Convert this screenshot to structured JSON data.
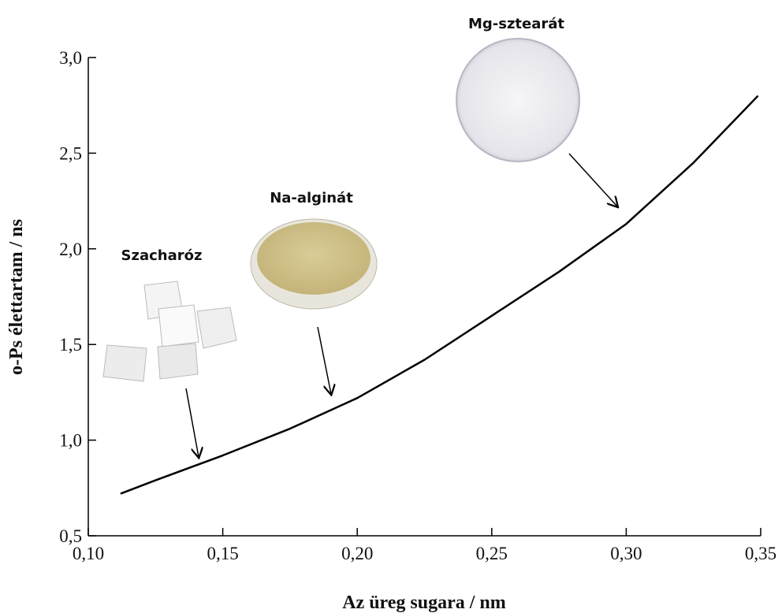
{
  "chart_data": {
    "type": "line",
    "xlabel": "Az üreg sugara / nm",
    "ylabel": "o-Ps élettartam / ns",
    "x": [
      0.112,
      0.125,
      0.15,
      0.175,
      0.2,
      0.225,
      0.25,
      0.275,
      0.3,
      0.325,
      0.349
    ],
    "series": [
      {
        "color": "#000000",
        "values": [
          0.72,
          0.79,
          0.92,
          1.06,
          1.22,
          1.42,
          1.65,
          1.88,
          2.13,
          2.45,
          2.8
        ]
      }
    ],
    "xlim": [
      0.1,
      0.35
    ],
    "xticks": [
      {
        "value": 0.1,
        "label": "0,10"
      },
      {
        "value": 0.15,
        "label": "0,15"
      },
      {
        "value": 0.2,
        "label": "0,20"
      },
      {
        "value": 0.25,
        "label": "0,25"
      },
      {
        "value": 0.3,
        "label": "0,30"
      },
      {
        "value": 0.35,
        "label": "0,35"
      }
    ],
    "ylim": [
      0.5,
      3.0
    ],
    "yticks": [
      {
        "value": 0.5,
        "label": "0,5"
      },
      {
        "value": 1.0,
        "label": "1,0"
      },
      {
        "value": 1.5,
        "label": "1,5"
      },
      {
        "value": 2.0,
        "label": "2,0"
      },
      {
        "value": 2.5,
        "label": "2,5"
      },
      {
        "value": 3.0,
        "label": "3,0"
      }
    ],
    "annotations": [
      "Szacharóz",
      "Na-alginát",
      "Mg-sztearát"
    ]
  }
}
